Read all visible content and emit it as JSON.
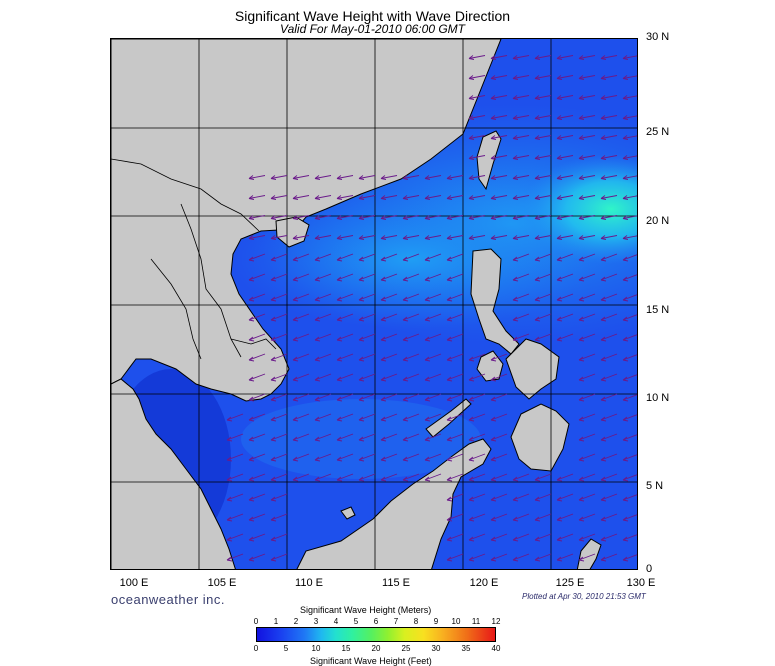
{
  "header": {
    "title": "Significant Wave Height with Wave Direction",
    "valid": "Valid For May-01-2010 06:00 GMT"
  },
  "map": {
    "lat_labels": [
      "30 N",
      "25 N",
      "20 N",
      "15 N",
      "10 N",
      "5 N",
      "0"
    ],
    "lon_labels": [
      "100 E",
      "105 E",
      "110 E",
      "115 E",
      "120 E",
      "125 E",
      "130 E"
    ],
    "colors": {
      "land": "#c8c8c8",
      "sea_low": "#1e46e8",
      "sea_mid": "#1f8ef5",
      "sea_high": "#22f0d0",
      "arrow": "#6a1a8a"
    }
  },
  "footer": {
    "brand": "oceanweather inc.",
    "plotted": "Plotted at Apr 30, 2010 21:53 GMT"
  },
  "colorbar": {
    "title_meters": "Significant Wave Height (Meters)",
    "title_feet": "Significant Wave Height (Feet)",
    "meters_ticks": [
      "0",
      "1",
      "2",
      "3",
      "4",
      "5",
      "6",
      "7",
      "8",
      "9",
      "10",
      "11",
      "12"
    ],
    "feet_ticks": [
      "0",
      "5",
      "10",
      "15",
      "20",
      "25",
      "30",
      "35",
      "40"
    ]
  }
}
